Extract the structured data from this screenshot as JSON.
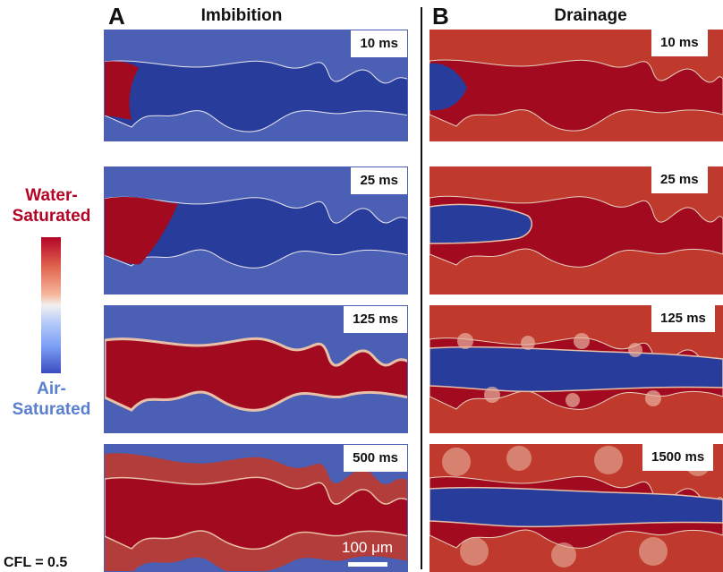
{
  "panels": {
    "imbibition": {
      "letter": "A",
      "title": "Imbibition",
      "times": [
        "10 ms",
        "25 ms",
        "125 ms",
        "500 ms"
      ]
    },
    "drainage": {
      "letter": "B",
      "title": "Drainage",
      "times": [
        "10 ms",
        "25 ms",
        "125 ms",
        "1500 ms"
      ]
    }
  },
  "legend": {
    "top_line1": "Water-",
    "top_line2": "Saturated",
    "bottom_line1": "Air-",
    "bottom_line2": "Saturated"
  },
  "cfl_label": "CFL = 0.5",
  "scale_bar_label": "100 μm",
  "colors": {
    "water_dark": "#a10a1f",
    "water_mid": "#bf3a2c",
    "air_dark": "#283c9c",
    "air_mid": "#4b5fb4",
    "interface": "#e8c0a8"
  }
}
